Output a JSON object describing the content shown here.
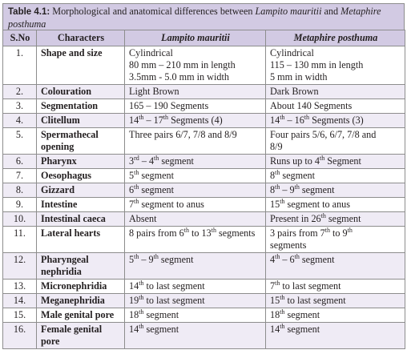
{
  "caption": {
    "label": "Table 4.1:",
    "text_pre": "  Morphological and anatomical differences between ",
    "species_a": "Lampito mauritii",
    "text_mid": " and ",
    "species_b": "Metaphire posthuma"
  },
  "headers": [
    "S.No",
    "Characters",
    "Lampito mauritii",
    "Metaphire posthuma"
  ],
  "rows": [
    {
      "no": "1.",
      "character": "Shape and size",
      "a": [
        "Cylindrical",
        "80 mm – 210 mm in length",
        "3.5mm - 5.0 mm in width"
      ],
      "b": [
        "Cylindrical",
        "115 – 130 mm in length",
        "5 mm in width"
      ]
    },
    {
      "no": "2.",
      "character": "Colouration",
      "a": [
        "Light Brown"
      ],
      "b": [
        "Dark Brown"
      ]
    },
    {
      "no": "3.",
      "character": "Segmentation",
      "a": [
        "165 – 190 Segments"
      ],
      "b": [
        "About 140 Segments"
      ]
    },
    {
      "no": "4.",
      "character": "Clitellum",
      "a": [
        "14^th – 17^th Segments (4)"
      ],
      "b": [
        "14^th – 16^th Segments (3)"
      ]
    },
    {
      "no": "5.",
      "character": "Spermathecal opening",
      "a": [
        "Three pairs 6/7, 7/8 and 8/9"
      ],
      "b": [
        "Four pairs 5/6, 6/7, 7/8 and",
        "8/9"
      ]
    },
    {
      "no": "6.",
      "character": "Pharynx",
      "a": [
        "3^rd – 4^th segment"
      ],
      "b": [
        "Runs up to 4^th Segment"
      ]
    },
    {
      "no": "7.",
      "character": "Oesophagus",
      "a": [
        "5^th segment"
      ],
      "b": [
        "8^th segment"
      ]
    },
    {
      "no": "8.",
      "character": "Gizzard",
      "a": [
        "6^th segment"
      ],
      "b": [
        "8^th – 9^th segment"
      ]
    },
    {
      "no": "9.",
      "character": "Intestine",
      "a": [
        "7^th segment to anus"
      ],
      "b": [
        "15^th segment to anus"
      ]
    },
    {
      "no": "10.",
      "character": "Intestinal caeca",
      "a": [
        "Absent"
      ],
      "b": [
        "Present in 26^th segment"
      ]
    },
    {
      "no": "11.",
      "character": "Lateral hearts",
      "a": [
        "8 pairs from 6^th to 13^th segments"
      ],
      "b": [
        "3 pairs from 7^th to 9^th",
        "segments"
      ]
    },
    {
      "no": "12.",
      "character": "Pharyngeal nephridia",
      "a": [
        "5^th – 9^th segment"
      ],
      "b": [
        "4^th – 6^th segment"
      ]
    },
    {
      "no": "13.",
      "character": "Micronephridia",
      "a": [
        "14^th to last segment"
      ],
      "b": [
        "7^th to last segment"
      ]
    },
    {
      "no": "14.",
      "character": "Meganephridia",
      "a": [
        "19^th to last segment"
      ],
      "b": [
        "15^th to last segment"
      ]
    },
    {
      "no": "15.",
      "character": "Male genital pore",
      "a": [
        "18^th segment"
      ],
      "b": [
        "18^th segment"
      ]
    },
    {
      "no": "16.",
      "character": "Female genital pore",
      "a": [
        "14^th segment"
      ],
      "b": [
        "14^th segment"
      ]
    }
  ]
}
